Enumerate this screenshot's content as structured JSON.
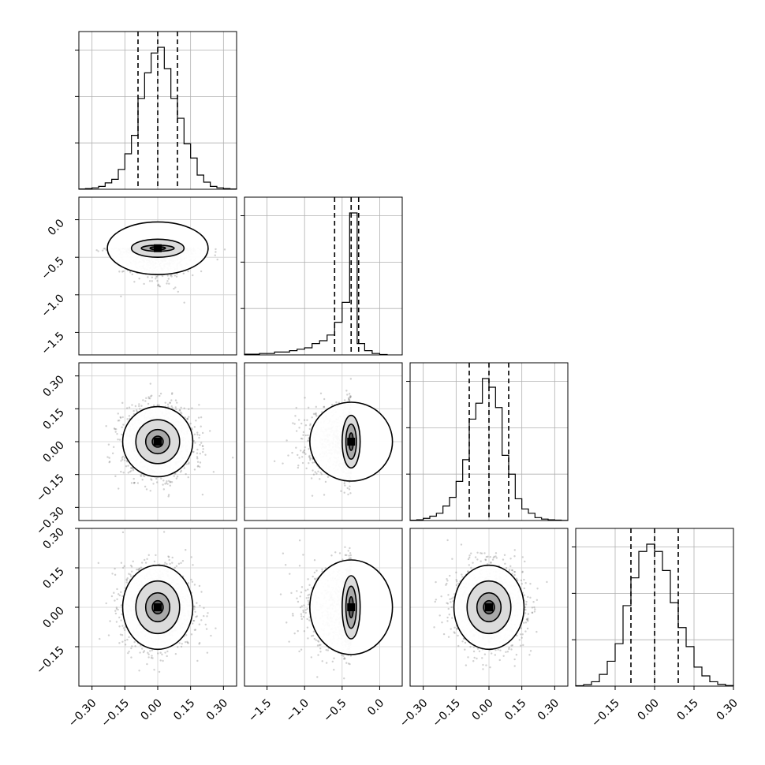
{
  "chart_data": {
    "type": "corner",
    "n_params": 4,
    "grid": true,
    "quantiles": [
      0.16,
      0.5,
      0.84
    ],
    "params": [
      {
        "range": [
          -0.36,
          0.36
        ],
        "ticks": [
          -0.3,
          -0.15,
          0.0,
          0.15,
          0.3
        ],
        "tick_labels": [
          "−0.30",
          "−0.15",
          "0.00",
          "0.15",
          "0.30"
        ],
        "quantile_values": [
          -0.09,
          0.0,
          0.09
        ],
        "hist": [
          {
            "x0": -0.36,
            "x1": -0.33,
            "v": 0.002
          },
          {
            "x0": -0.33,
            "x1": -0.3,
            "v": 0.005
          },
          {
            "x0": -0.3,
            "x1": -0.27,
            "v": 0.01
          },
          {
            "x0": -0.27,
            "x1": -0.24,
            "v": 0.02
          },
          {
            "x0": -0.24,
            "x1": -0.21,
            "v": 0.045
          },
          {
            "x0": -0.21,
            "x1": -0.18,
            "v": 0.07
          },
          {
            "x0": -0.18,
            "x1": -0.15,
            "v": 0.14
          },
          {
            "x0": -0.15,
            "x1": -0.12,
            "v": 0.25
          },
          {
            "x0": -0.12,
            "x1": -0.09,
            "v": 0.38
          },
          {
            "x0": -0.09,
            "x1": -0.06,
            "v": 0.64
          },
          {
            "x0": -0.06,
            "x1": -0.03,
            "v": 0.82
          },
          {
            "x0": -0.03,
            "x1": 0.0,
            "v": 0.96
          },
          {
            "x0": 0.0,
            "x1": 0.03,
            "v": 1.0
          },
          {
            "x0": 0.03,
            "x1": 0.06,
            "v": 0.85
          },
          {
            "x0": 0.06,
            "x1": 0.09,
            "v": 0.64
          },
          {
            "x0": 0.09,
            "x1": 0.12,
            "v": 0.5
          },
          {
            "x0": 0.12,
            "x1": 0.15,
            "v": 0.32
          },
          {
            "x0": 0.15,
            "x1": 0.18,
            "v": 0.22
          },
          {
            "x0": 0.18,
            "x1": 0.21,
            "v": 0.1
          },
          {
            "x0": 0.21,
            "x1": 0.24,
            "v": 0.05
          },
          {
            "x0": 0.24,
            "x1": 0.27,
            "v": 0.02
          },
          {
            "x0": 0.27,
            "x1": 0.3,
            "v": 0.01
          },
          {
            "x0": 0.3,
            "x1": 0.33,
            "v": 0.005
          },
          {
            "x0": 0.33,
            "x1": 0.36,
            "v": 0.002
          }
        ]
      },
      {
        "range": [
          -1.8,
          0.3
        ],
        "ticks": [
          -1.5,
          -1.0,
          -0.5,
          0.0
        ],
        "tick_labels": [
          "−1.5",
          "−1.0",
          "−0.5",
          "0.0"
        ],
        "quantile_values": [
          -0.6,
          -0.38,
          -0.28
        ],
        "hist": [
          {
            "x0": -1.8,
            "x1": -1.6,
            "v": 0.005
          },
          {
            "x0": -1.6,
            "x1": -1.4,
            "v": 0.01
          },
          {
            "x0": -1.4,
            "x1": -1.2,
            "v": 0.02
          },
          {
            "x0": -1.2,
            "x1": -1.1,
            "v": 0.03
          },
          {
            "x0": -1.1,
            "x1": -1.0,
            "v": 0.04
          },
          {
            "x0": -1.0,
            "x1": -0.9,
            "v": 0.05
          },
          {
            "x0": -0.9,
            "x1": -0.8,
            "v": 0.08
          },
          {
            "x0": -0.8,
            "x1": -0.7,
            "v": 0.1
          },
          {
            "x0": -0.7,
            "x1": -0.6,
            "v": 0.14
          },
          {
            "x0": -0.6,
            "x1": -0.5,
            "v": 0.23
          },
          {
            "x0": -0.5,
            "x1": -0.4,
            "v": 0.37
          },
          {
            "x0": -0.4,
            "x1": -0.3,
            "v": 1.0
          },
          {
            "x0": -0.3,
            "x1": -0.2,
            "v": 0.08
          },
          {
            "x0": -0.2,
            "x1": -0.1,
            "v": 0.03
          },
          {
            "x0": -0.1,
            "x1": 0.0,
            "v": 0.01
          },
          {
            "x0": 0.0,
            "x1": 0.1,
            "v": 0.003
          }
        ]
      },
      {
        "range": [
          -0.36,
          0.36
        ],
        "ticks": [
          -0.3,
          -0.15,
          0.0,
          0.15,
          0.3
        ],
        "tick_labels": [
          "−0.30",
          "−0.15",
          "0.00",
          "0.15",
          "0.30"
        ],
        "quantile_values": [
          -0.09,
          0.0,
          0.09
        ],
        "hist": [
          {
            "x0": -0.36,
            "x1": -0.33,
            "v": 0.002
          },
          {
            "x0": -0.33,
            "x1": -0.3,
            "v": 0.005
          },
          {
            "x0": -0.3,
            "x1": -0.27,
            "v": 0.015
          },
          {
            "x0": -0.27,
            "x1": -0.24,
            "v": 0.03
          },
          {
            "x0": -0.24,
            "x1": -0.21,
            "v": 0.05
          },
          {
            "x0": -0.21,
            "x1": -0.18,
            "v": 0.1
          },
          {
            "x0": -0.18,
            "x1": -0.15,
            "v": 0.16
          },
          {
            "x0": -0.15,
            "x1": -0.12,
            "v": 0.27
          },
          {
            "x0": -0.12,
            "x1": -0.09,
            "v": 0.42
          },
          {
            "x0": -0.09,
            "x1": -0.06,
            "v": 0.7
          },
          {
            "x0": -0.06,
            "x1": -0.03,
            "v": 0.81
          },
          {
            "x0": -0.03,
            "x1": 0.0,
            "v": 0.98
          },
          {
            "x0": 0.0,
            "x1": 0.03,
            "v": 0.92
          },
          {
            "x0": 0.03,
            "x1": 0.06,
            "v": 0.78
          },
          {
            "x0": 0.06,
            "x1": 0.09,
            "v": 0.45
          },
          {
            "x0": 0.09,
            "x1": 0.12,
            "v": 0.32
          },
          {
            "x0": 0.12,
            "x1": 0.15,
            "v": 0.15
          },
          {
            "x0": 0.15,
            "x1": 0.18,
            "v": 0.08
          },
          {
            "x0": 0.18,
            "x1": 0.21,
            "v": 0.05
          },
          {
            "x0": 0.21,
            "x1": 0.24,
            "v": 0.02
          },
          {
            "x0": 0.24,
            "x1": 0.27,
            "v": 0.01
          },
          {
            "x0": 0.27,
            "x1": 0.3,
            "v": 0.005
          },
          {
            "x0": 0.3,
            "x1": 0.33,
            "v": 0.003
          },
          {
            "x0": 0.33,
            "x1": 0.36,
            "v": 0.001
          }
        ]
      },
      {
        "range": [
          -0.3,
          0.3
        ],
        "ticks": [
          -0.15,
          0.0,
          0.15,
          0.3
        ],
        "tick_labels": [
          "−0.15",
          "0.00",
          "0.15",
          "0.30"
        ],
        "quantile_values": [
          -0.09,
          0.0,
          0.09
        ],
        "hist": [
          {
            "x0": -0.3,
            "x1": -0.27,
            "v": 0.003
          },
          {
            "x0": -0.27,
            "x1": -0.24,
            "v": 0.01
          },
          {
            "x0": -0.24,
            "x1": -0.21,
            "v": 0.03
          },
          {
            "x0": -0.21,
            "x1": -0.18,
            "v": 0.08
          },
          {
            "x0": -0.18,
            "x1": -0.15,
            "v": 0.17
          },
          {
            "x0": -0.15,
            "x1": -0.12,
            "v": 0.29
          },
          {
            "x0": -0.12,
            "x1": -0.09,
            "v": 0.55
          },
          {
            "x0": -0.09,
            "x1": -0.06,
            "v": 0.74
          },
          {
            "x0": -0.06,
            "x1": -0.03,
            "v": 0.92
          },
          {
            "x0": -0.03,
            "x1": 0.0,
            "v": 0.97
          },
          {
            "x0": 0.0,
            "x1": 0.03,
            "v": 0.92
          },
          {
            "x0": 0.03,
            "x1": 0.06,
            "v": 0.79
          },
          {
            "x0": 0.06,
            "x1": 0.09,
            "v": 0.57
          },
          {
            "x0": 0.09,
            "x1": 0.12,
            "v": 0.4
          },
          {
            "x0": 0.12,
            "x1": 0.15,
            "v": 0.27
          },
          {
            "x0": 0.15,
            "x1": 0.18,
            "v": 0.13
          },
          {
            "x0": 0.18,
            "x1": 0.21,
            "v": 0.07
          },
          {
            "x0": 0.21,
            "x1": 0.24,
            "v": 0.03
          },
          {
            "x0": 0.24,
            "x1": 0.27,
            "v": 0.012
          },
          {
            "x0": 0.27,
            "x1": 0.3,
            "v": 0.004
          }
        ]
      }
    ],
    "joint": [
      {
        "xi": 0,
        "yi": 1,
        "center": [
          0.0,
          -0.38
        ],
        "sigma": [
          0.08,
          0.18
        ],
        "contour_sigma": [
          0.09,
          0.05
        ],
        "levels": [
          [
            0.035,
            0.02
          ],
          [
            0.075,
            0.04
          ],
          [
            0.12,
            0.12
          ],
          [
            0.23,
            0.35
          ]
        ]
      },
      {
        "xi": 0,
        "yi": 2,
        "center": [
          0.0,
          0.0
        ],
        "sigma": [
          0.08,
          0.08
        ],
        "levels": [
          [
            0.025,
            0.025
          ],
          [
            0.055,
            0.055
          ],
          [
            0.1,
            0.1
          ],
          [
            0.16,
            0.16
          ]
        ]
      },
      {
        "xi": 1,
        "yi": 2,
        "center": [
          -0.38,
          0.0
        ],
        "sigma": [
          0.3,
          0.08
        ],
        "levels": [
          [
            0.03,
            0.04
          ],
          [
            0.07,
            0.08
          ],
          [
            0.12,
            0.12
          ],
          [
            0.55,
            0.18
          ]
        ]
      },
      {
        "xi": 0,
        "yi": 3,
        "center": [
          0.0,
          0.0
        ],
        "sigma": [
          0.08,
          0.08
        ],
        "levels": [
          [
            0.025,
            0.025
          ],
          [
            0.055,
            0.055
          ],
          [
            0.1,
            0.1
          ],
          [
            0.16,
            0.16
          ]
        ]
      },
      {
        "xi": 1,
        "yi": 3,
        "center": [
          -0.38,
          0.0
        ],
        "sigma": [
          0.3,
          0.08
        ],
        "levels": [
          [
            0.03,
            0.04
          ],
          [
            0.07,
            0.08
          ],
          [
            0.12,
            0.12
          ],
          [
            0.55,
            0.18
          ]
        ]
      },
      {
        "xi": 2,
        "yi": 3,
        "center": [
          0.0,
          0.0
        ],
        "sigma": [
          0.08,
          0.08
        ],
        "levels": [
          [
            0.025,
            0.025
          ],
          [
            0.055,
            0.055
          ],
          [
            0.1,
            0.1
          ],
          [
            0.16,
            0.16
          ]
        ]
      }
    ]
  }
}
